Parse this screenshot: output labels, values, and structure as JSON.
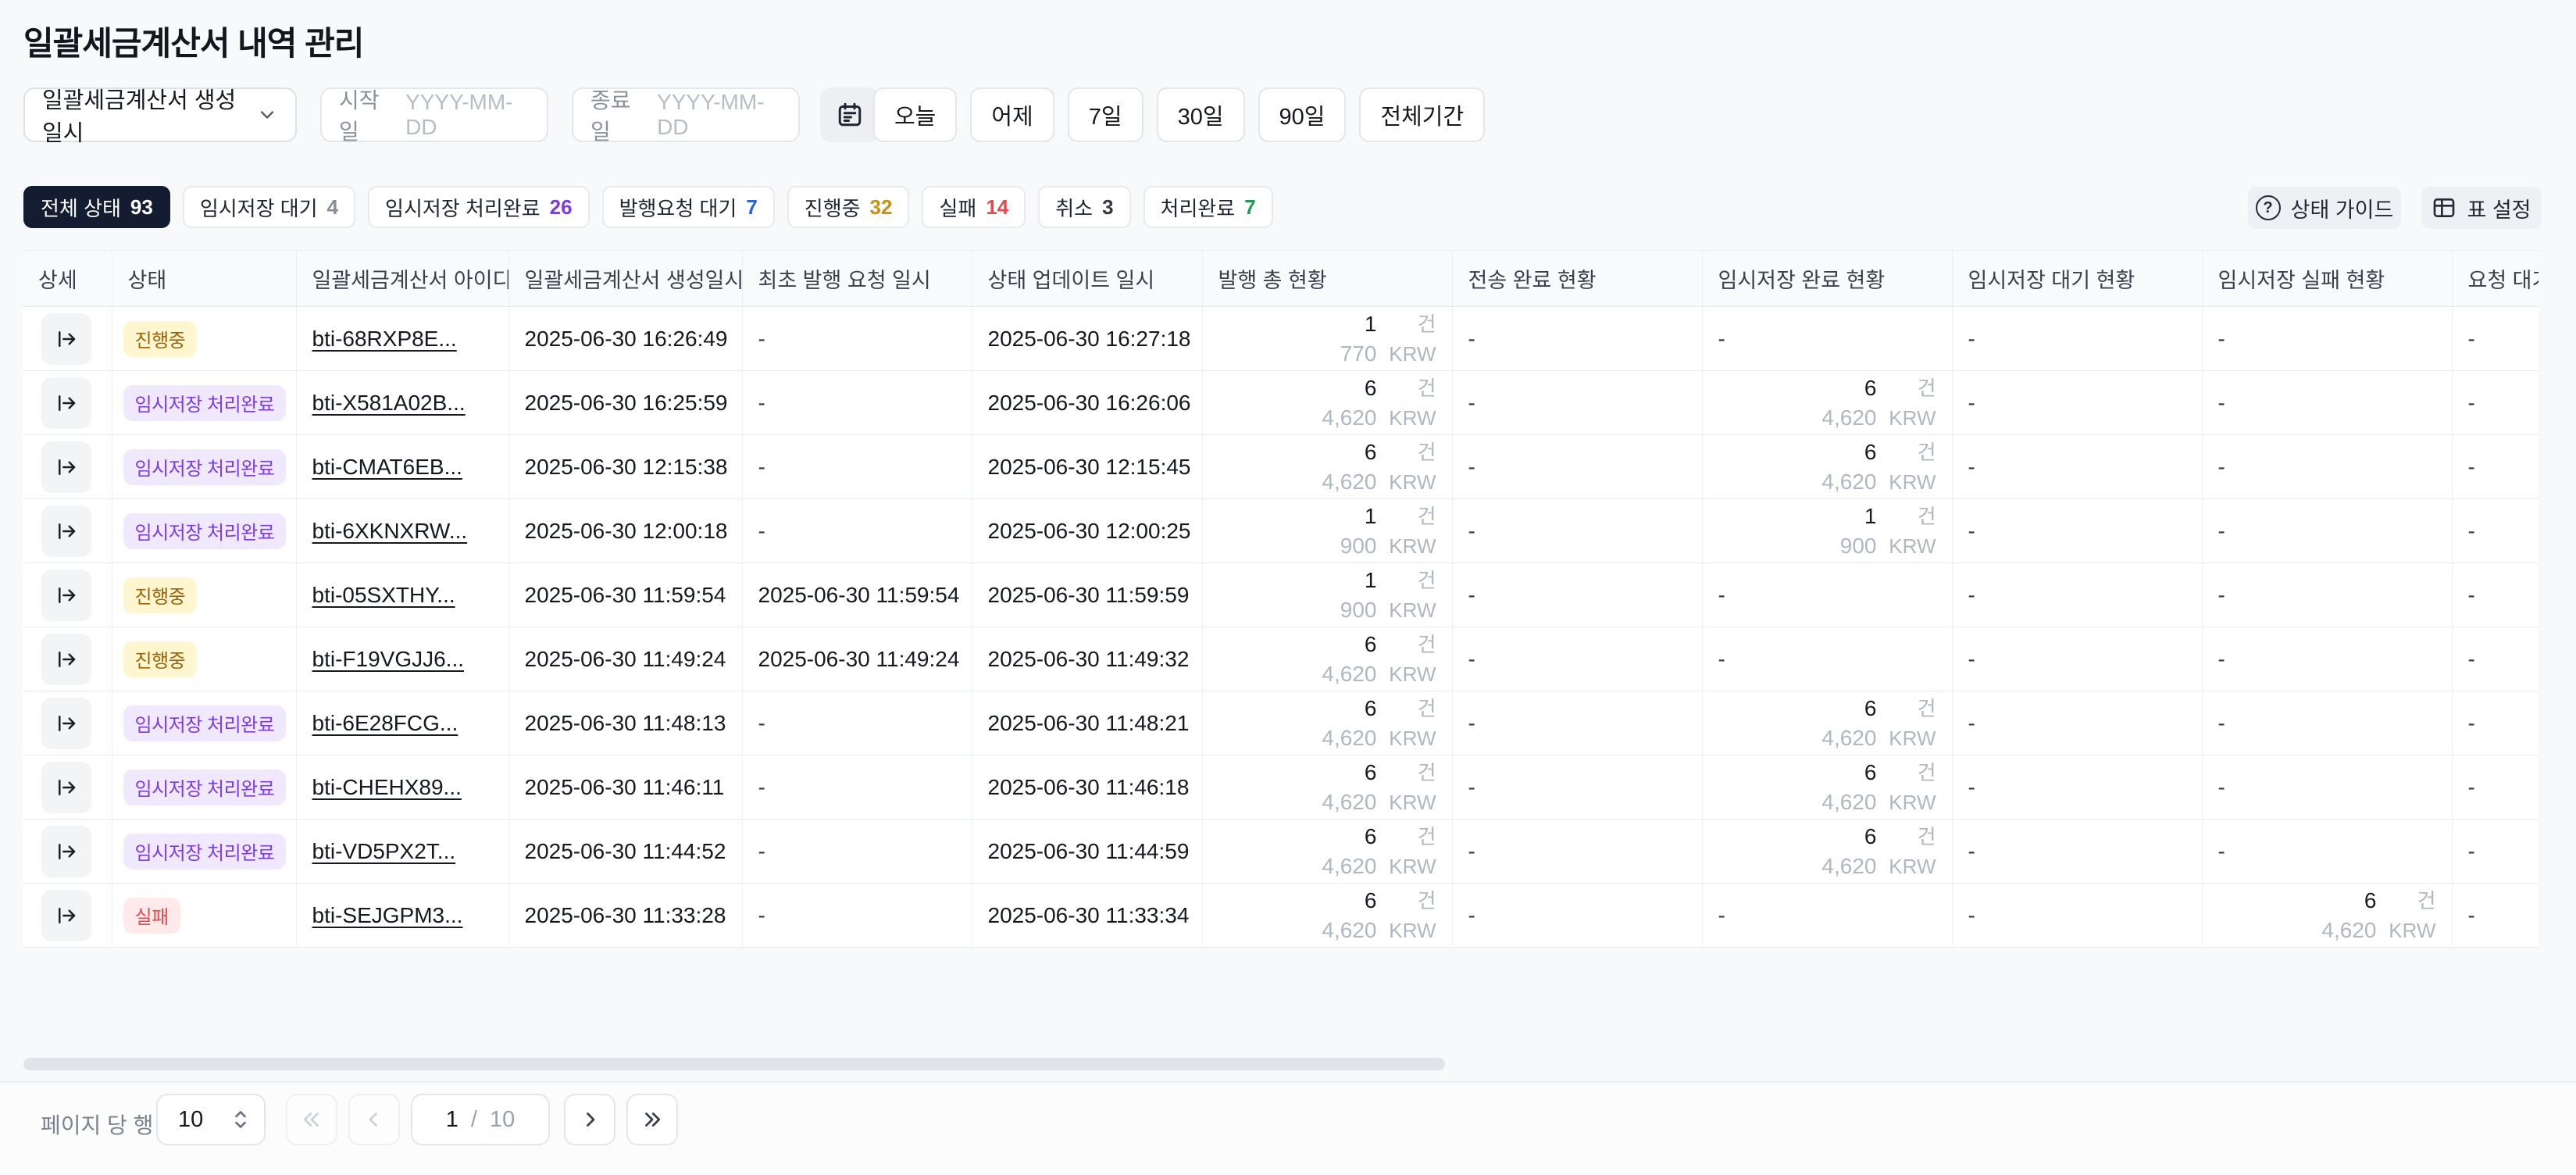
{
  "page": {
    "title": "일괄세금계산서 내역 관리"
  },
  "filters": {
    "date_type_value": "일괄세금계산서 생성일시",
    "start_label": "시작일",
    "start_placeholder": "YYYY-MM-DD",
    "end_label": "종료일",
    "end_placeholder": "YYYY-MM-DD",
    "quick_ranges": [
      "오늘",
      "어제",
      "7일",
      "30일",
      "90일",
      "전체기간"
    ]
  },
  "status_tabs": [
    {
      "label": "전체 상태",
      "count": "93",
      "active": true,
      "count_color": "#ffffff"
    },
    {
      "label": "임시저장 대기",
      "count": "4",
      "active": false,
      "count_color": "#868e96"
    },
    {
      "label": "임시저장 처리완료",
      "count": "26",
      "active": false,
      "count_color": "#7c3aed"
    },
    {
      "label": "발행요청 대기",
      "count": "7",
      "active": false,
      "count_color": "#2563eb"
    },
    {
      "label": "진행중",
      "count": "32",
      "active": false,
      "count_color": "#c8920f"
    },
    {
      "label": "실패",
      "count": "14",
      "active": false,
      "count_color": "#e5484d"
    },
    {
      "label": "취소",
      "count": "3",
      "active": false,
      "count_color": "#343a40"
    },
    {
      "label": "처리완료",
      "count": "7",
      "active": false,
      "count_color": "#1a9e54"
    }
  ],
  "toolbar": {
    "status_guide_label": "상태 가이드",
    "table_settings_label": "표 설정"
  },
  "table": {
    "columns": [
      "상세",
      "상태",
      "일괄세금계산서 아이디",
      "일괄세금계산서 생성일시",
      "최초 발행 요청 일시",
      "상태 업데이트 일시",
      "발행 총 현황",
      "전송 완료 현황",
      "임시저장 완료 현황",
      "임시저장 대기 현황",
      "임시저장 실패 현황",
      "요청 대기 현황"
    ],
    "units": {
      "count": "건",
      "currency": "KRW"
    },
    "empty_value": "-",
    "badges": {
      "progress": {
        "label": "진행중",
        "bg": "#fdf6cf",
        "fg": "#a16207"
      },
      "draft_done": {
        "label": "임시저장 처리완료",
        "bg": "#f0e9fe",
        "fg": "#7c3aed"
      },
      "fail": {
        "label": "실패",
        "bg": "#feeaea",
        "fg": "#e5484d"
      }
    },
    "rows": [
      {
        "status": "progress",
        "id": "bti-68RXP8E...",
        "created": "2025-06-30 16:26:49",
        "first_request": null,
        "updated": "2025-06-30 16:27:18",
        "issue_total": {
          "count": "1",
          "amount": "770"
        },
        "sent_done": null,
        "draft_done": null,
        "draft_wait": null,
        "draft_fail": null,
        "request_wait": null
      },
      {
        "status": "draft_done",
        "id": "bti-X581A02B...",
        "created": "2025-06-30 16:25:59",
        "first_request": null,
        "updated": "2025-06-30 16:26:06",
        "issue_total": {
          "count": "6",
          "amount": "4,620"
        },
        "sent_done": null,
        "draft_done": {
          "count": "6",
          "amount": "4,620"
        },
        "draft_wait": null,
        "draft_fail": null,
        "request_wait": null
      },
      {
        "status": "draft_done",
        "id": "bti-CMAT6EB...",
        "created": "2025-06-30 12:15:38",
        "first_request": null,
        "updated": "2025-06-30 12:15:45",
        "issue_total": {
          "count": "6",
          "amount": "4,620"
        },
        "sent_done": null,
        "draft_done": {
          "count": "6",
          "amount": "4,620"
        },
        "draft_wait": null,
        "draft_fail": null,
        "request_wait": null
      },
      {
        "status": "draft_done",
        "id": "bti-6XKNXRW...",
        "created": "2025-06-30 12:00:18",
        "first_request": null,
        "updated": "2025-06-30 12:00:25",
        "issue_total": {
          "count": "1",
          "amount": "900"
        },
        "sent_done": null,
        "draft_done": {
          "count": "1",
          "amount": "900"
        },
        "draft_wait": null,
        "draft_fail": null,
        "request_wait": null
      },
      {
        "status": "progress",
        "id": "bti-05SXTHY...",
        "created": "2025-06-30 11:59:54",
        "first_request": "2025-06-30 11:59:54",
        "updated": "2025-06-30 11:59:59",
        "issue_total": {
          "count": "1",
          "amount": "900"
        },
        "sent_done": null,
        "draft_done": null,
        "draft_wait": null,
        "draft_fail": null,
        "request_wait": null
      },
      {
        "status": "progress",
        "id": "bti-F19VGJJ6...",
        "created": "2025-06-30 11:49:24",
        "first_request": "2025-06-30 11:49:24",
        "updated": "2025-06-30 11:49:32",
        "issue_total": {
          "count": "6",
          "amount": "4,620"
        },
        "sent_done": null,
        "draft_done": null,
        "draft_wait": null,
        "draft_fail": null,
        "request_wait": null
      },
      {
        "status": "draft_done",
        "id": "bti-6E28FCG...",
        "created": "2025-06-30 11:48:13",
        "first_request": null,
        "updated": "2025-06-30 11:48:21",
        "issue_total": {
          "count": "6",
          "amount": "4,620"
        },
        "sent_done": null,
        "draft_done": {
          "count": "6",
          "amount": "4,620"
        },
        "draft_wait": null,
        "draft_fail": null,
        "request_wait": null
      },
      {
        "status": "draft_done",
        "id": "bti-CHEHX89...",
        "created": "2025-06-30 11:46:11",
        "first_request": null,
        "updated": "2025-06-30 11:46:18",
        "issue_total": {
          "count": "6",
          "amount": "4,620"
        },
        "sent_done": null,
        "draft_done": {
          "count": "6",
          "amount": "4,620"
        },
        "draft_wait": null,
        "draft_fail": null,
        "request_wait": null
      },
      {
        "status": "draft_done",
        "id": "bti-VD5PX2T...",
        "created": "2025-06-30 11:44:52",
        "first_request": null,
        "updated": "2025-06-30 11:44:59",
        "issue_total": {
          "count": "6",
          "amount": "4,620"
        },
        "sent_done": null,
        "draft_done": {
          "count": "6",
          "amount": "4,620"
        },
        "draft_wait": null,
        "draft_fail": null,
        "request_wait": null
      },
      {
        "status": "fail",
        "id": "bti-SEJGPM3...",
        "created": "2025-06-30 11:33:28",
        "first_request": null,
        "updated": "2025-06-30 11:33:34",
        "issue_total": {
          "count": "6",
          "amount": "4,620"
        },
        "sent_done": null,
        "draft_done": null,
        "draft_wait": null,
        "draft_fail": {
          "count": "6",
          "amount": "4,620"
        },
        "request_wait": null
      }
    ]
  },
  "pagination": {
    "rows_per_page_label": "페이지 당 행",
    "rows_per_page_value": "10",
    "current_page": "1",
    "page_separator": "/",
    "total_pages": "10"
  }
}
